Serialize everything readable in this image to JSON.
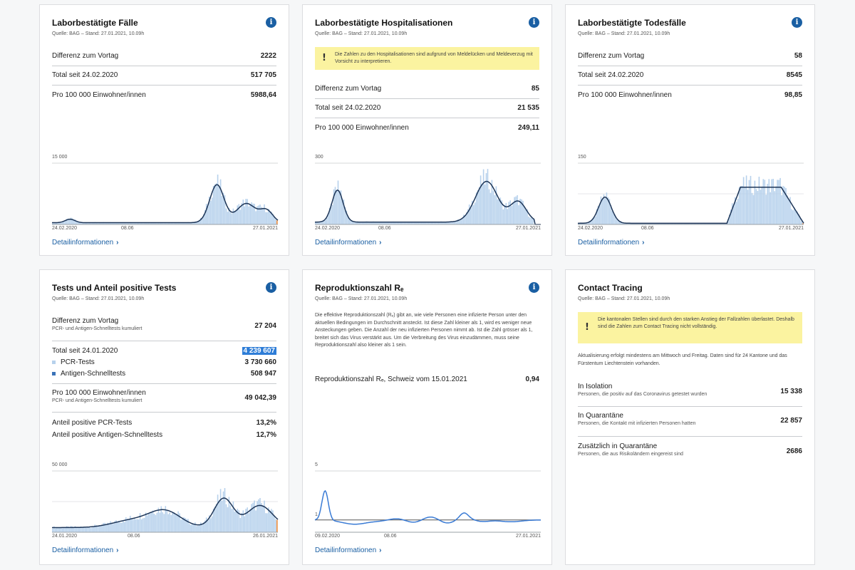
{
  "cards": {
    "faelle": {
      "title": "Laborbestätigte Fälle",
      "source": "Quelle: BAG – Stand: 27.01.2021, 10.09h",
      "rows": [
        {
          "label": "Differenz zum Vortag",
          "value": "2222"
        },
        {
          "label": "Total seit 24.02.2020",
          "value": "517 705"
        },
        {
          "label": "Pro 100 000 Einwohner/innen",
          "value": "5988,64"
        }
      ],
      "chart": {
        "ymax_label": "15 000",
        "x_start": "24.02.2020",
        "x_mid": "08.06",
        "x_end": "27.01.2021"
      },
      "detail": "Detailinformationen"
    },
    "hosp": {
      "title": "Laborbestätigte Hospitalisationen",
      "source": "Quelle: BAG – Stand: 27.01.2021, 10.09h",
      "warning": "Die Zahlen zu den Hospitalisationen sind aufgrund von Meldelücken und Meldeverzug mit Vorsicht zu interpretieren.",
      "rows": [
        {
          "label": "Differenz zum Vortag",
          "value": "85"
        },
        {
          "label": "Total seit 24.02.2020",
          "value": "21 535"
        },
        {
          "label": "Pro 100 000 Einwohner/innen",
          "value": "249,11"
        }
      ],
      "chart": {
        "ymax_label": "300",
        "x_start": "24.02.2020",
        "x_mid": "08.06",
        "x_end": "27.01.2021"
      },
      "detail": "Detailinformationen"
    },
    "tod": {
      "title": "Laborbestätigte Todesfälle",
      "source": "Quelle: BAG – Stand: 27.01.2021, 10.09h",
      "rows": [
        {
          "label": "Differenz zum Vortag",
          "value": "58"
        },
        {
          "label": "Total seit 24.02.2020",
          "value": "8545"
        },
        {
          "label": "Pro 100 000 Einwohner/innen",
          "value": "98,85"
        }
      ],
      "chart": {
        "ymax_label": "150",
        "x_start": "24.02.2020",
        "x_mid": "08.06",
        "x_end": "27.01.2021"
      },
      "detail": "Detailinformationen"
    },
    "tests": {
      "title": "Tests und Anteil positive Tests",
      "source": "Quelle: BAG – Stand: 27.01.2021, 10.09h",
      "diff_label": "Differenz zum Vortag",
      "diff_sub": "PCR- und Antigen-Schnelltests kumuliert",
      "diff_value": "27 204",
      "total_label": "Total seit 24.01.2020",
      "total_value": "4 239 607",
      "pcr_label": "PCR-Tests",
      "pcr_value": "3 730 660",
      "ag_label": "Antigen-Schnelltests",
      "ag_value": "508 947",
      "pro_label": "Pro 100 000 Einwohner/innen",
      "pro_sub": "PCR- und Antigen-Schnelltests kumuliert",
      "pro_value": "49 042,39",
      "pos_pcr_label": "Anteil positive PCR-Tests",
      "pos_pcr_value": "13,2%",
      "pos_ag_label": "Anteil positive Antigen-Schnelltests",
      "pos_ag_value": "12,7%",
      "chart": {
        "ymax_label": "50 000",
        "x_start": "24.01.2020",
        "x_mid": "08.06",
        "x_end": "26.01.2021"
      },
      "detail": "Detailinformationen",
      "colors": {
        "pcr": "#b7d1ec",
        "antigen": "#3a72b8"
      }
    },
    "re": {
      "title": "Reproduktionszahl Rₑ",
      "source": "Quelle: BAG – Stand: 27.01.2021, 10.09h",
      "text": "Die effektive Reproduktionszahl (Rₑ) gibt an, wie viele Personen eine infizierte Person unter den aktuellen Bedingungen im Durchschnitt ansteckt. Ist diese Zahl kleiner als 1, wird es weniger neue Ansteckungen geben. Die Anzahl der neu infizierten Personen nimmt ab. Ist die Zahl grösser als 1, breitet sich das Virus verstärkt aus. Um die Verbreitung des Virus einzudämmen, muss seine Reproduktionszahl also kleiner als 1 sein.",
      "row_label": "Reproduktionszahl Rₑ, Schweiz vom 15.01.2021",
      "row_value": "0,94",
      "chart": {
        "ymax_label": "5",
        "y1_label": "1",
        "x_start": "09.02.2020",
        "x_mid": "08.06",
        "x_end": "27.01.2021"
      },
      "detail": "Detailinformationen"
    },
    "ct": {
      "title": "Contact Tracing",
      "source": "Quelle: BAG – Stand: 27.01.2021, 10.09h",
      "warning": "Die kantonalen Stellen sind durch den starken Anstieg der Fallzahlen überlastet. Deshalb sind die Zahlen zum Contact Tracing nicht vollständig.",
      "text": "Aktualisierung erfolgt mindestens am Mittwoch und Freitag. Daten sind für 24 Kantone und das Fürstentum Liechtenstein vorhanden.",
      "rows": [
        {
          "label": "In Isolation",
          "sub": "Personen, die positiv auf das Coronavirus getestet wurden",
          "value": "15 338"
        },
        {
          "label": "In Quarantäne",
          "sub": "Personen, die Kontakt mit infizierten Personen hatten",
          "value": "22 857"
        },
        {
          "label": "Zusätzlich in Quarantäne",
          "sub": "Personen, die aus Risikoländern eingereist sind",
          "value": "2686"
        }
      ]
    }
  },
  "colors": {
    "accent": "#1a5fa3",
    "bar": "#b7d1ec",
    "line": "#1d3557",
    "re_line": "#3a7bd5",
    "warning_bg": "#fbf3a0",
    "highlight": "#2e7dd7",
    "latest_bar": "#e8893a"
  }
}
